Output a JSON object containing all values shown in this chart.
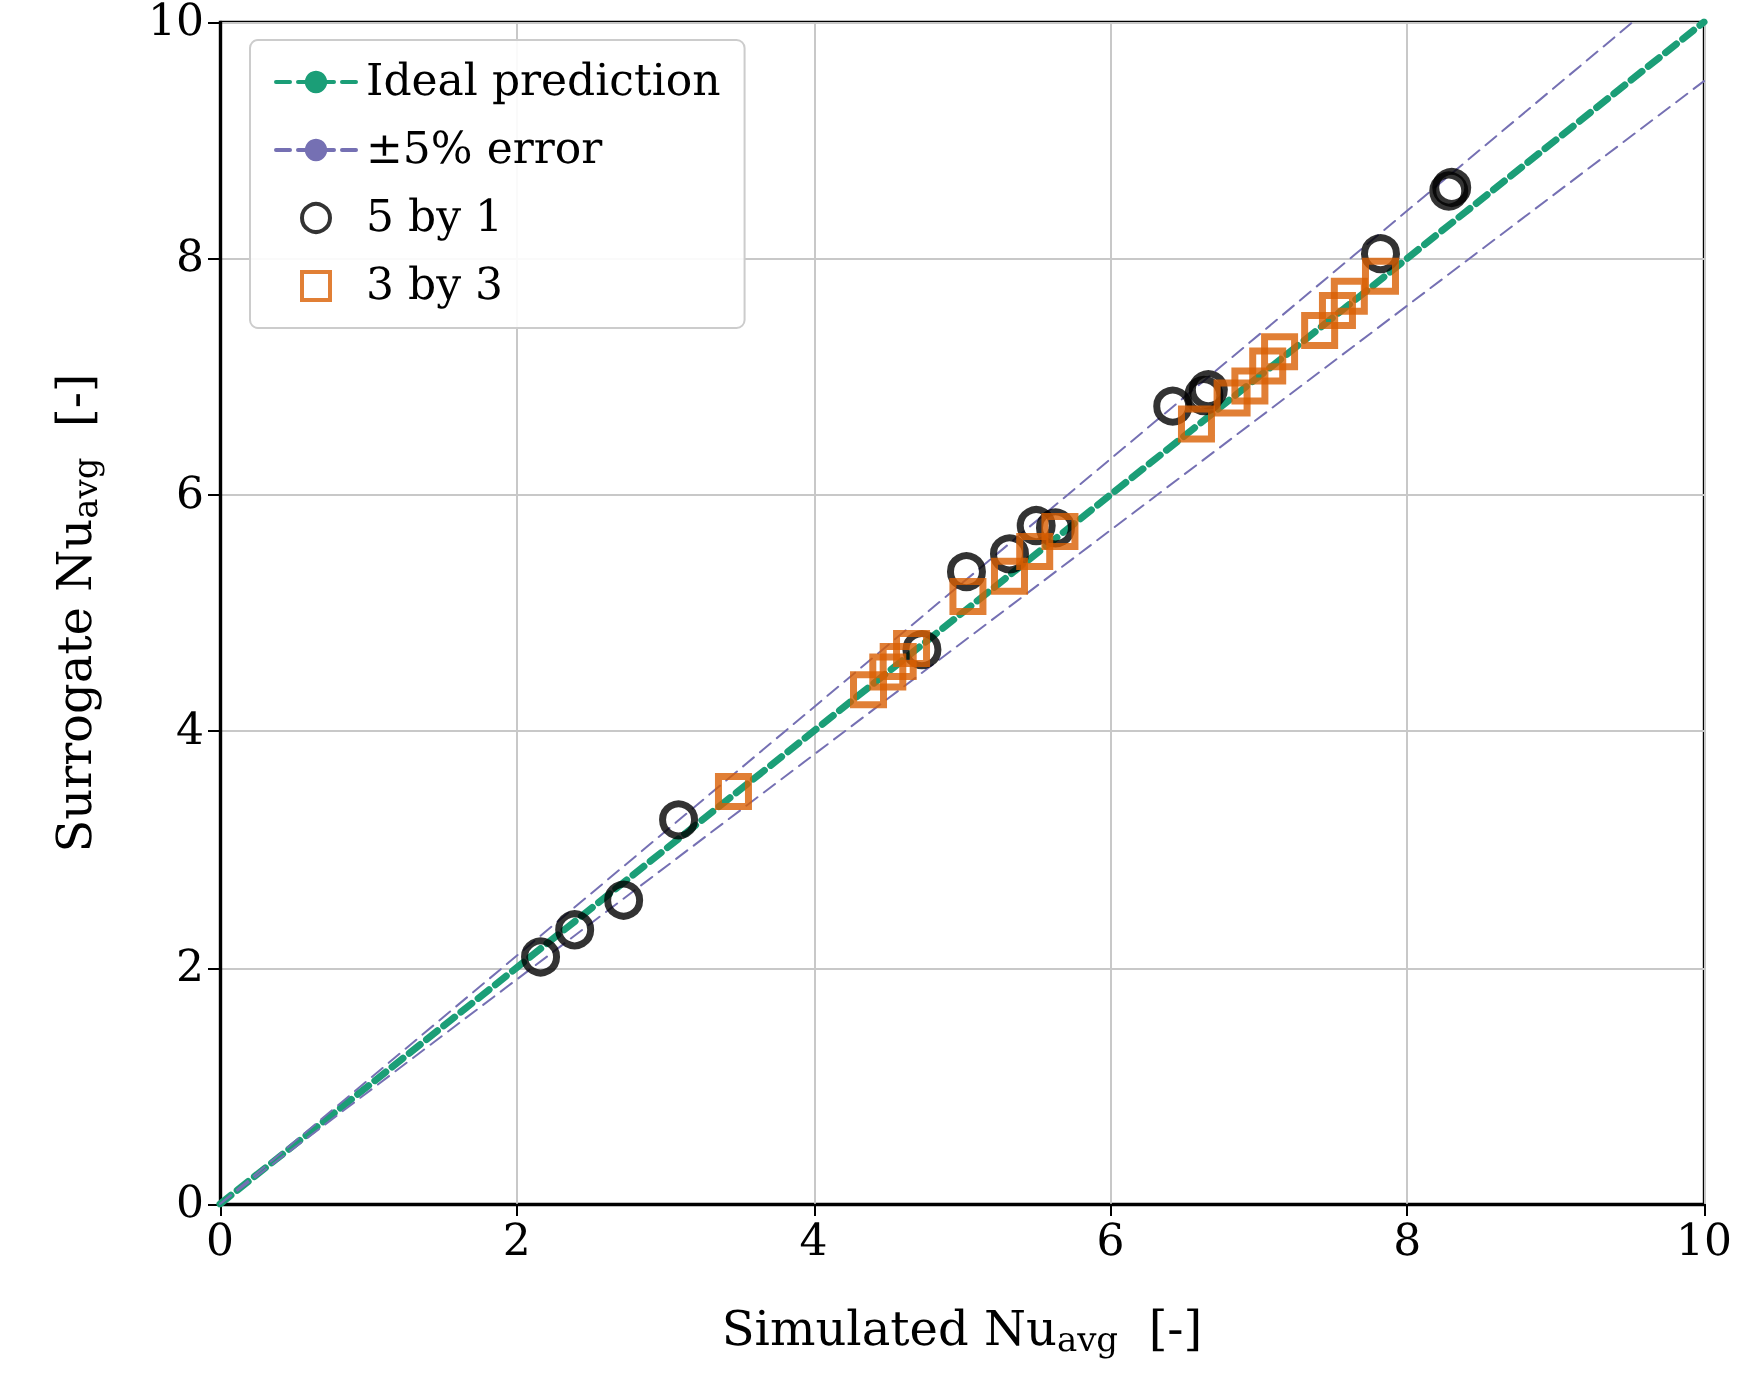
{
  "chart_data": {
    "type": "scatter",
    "xlabel": "Simulated Nu$_{avg}$  [-]",
    "ylabel": "Surrogate Nu$_{avg}$  [-]",
    "xlim": [
      0,
      10
    ],
    "ylim": [
      0,
      10
    ],
    "xticks": [
      0,
      2,
      4,
      6,
      8,
      10
    ],
    "yticks": [
      0,
      2,
      4,
      6,
      8,
      10
    ],
    "grid": true,
    "legend": "top left",
    "series": [
      {
        "name": "Ideal prediction",
        "type": "line",
        "color": "#1b9e77",
        "line_style": "dashed",
        "marker": "none",
        "x": [
          0,
          10
        ],
        "values": [
          0,
          10
        ]
      },
      {
        "name": "±5% error",
        "type": "line",
        "color": "#7570b3",
        "line_style": "dashed",
        "marker": "none",
        "x": [
          0,
          9.52,
          null,
          0,
          10
        ],
        "values": [
          0,
          10,
          null,
          0,
          9.5
        ]
      },
      {
        "name": "5 by 1",
        "color": "#000000",
        "marker": "circle",
        "x": [
          2.16,
          2.39,
          2.72,
          3.09,
          4.73,
          5.03,
          5.32,
          5.5,
          5.63,
          6.42,
          6.63,
          6.66,
          7.82,
          8.3,
          8.28
        ],
        "values": [
          2.09,
          2.32,
          2.57,
          3.25,
          4.69,
          5.35,
          5.5,
          5.74,
          5.72,
          6.75,
          6.84,
          6.89,
          8.04,
          8.6,
          8.57
        ]
      },
      {
        "name": "3 by 3",
        "color": "#d95f02",
        "marker": "square",
        "x": [
          3.46,
          4.37,
          4.5,
          4.57,
          4.66,
          5.04,
          5.32,
          5.49,
          5.66,
          6.58,
          6.82,
          6.94,
          7.06,
          7.14,
          7.41,
          7.53,
          7.61,
          7.82
        ],
        "values": [
          3.49,
          4.35,
          4.5,
          4.59,
          4.7,
          5.14,
          5.31,
          5.52,
          5.69,
          6.6,
          6.82,
          6.92,
          7.09,
          7.21,
          7.39,
          7.56,
          7.68,
          7.85
        ]
      }
    ]
  }
}
